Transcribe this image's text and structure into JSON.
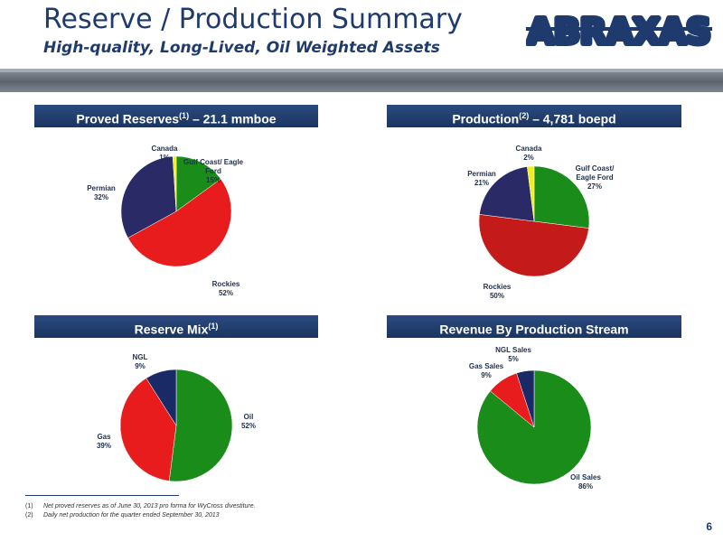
{
  "header": {
    "title": "Reserve / Production Summary",
    "subtitle": "High-quality, Long-Lived, Oil Weighted Assets",
    "logo_text": "ABRAXAS"
  },
  "sections": {
    "reserves": {
      "label": "Proved Reserves",
      "sup": "(1)",
      "suffix": " – 21.1 mmboe"
    },
    "production": {
      "label": "Production",
      "sup": "(2)",
      "suffix": " –  4,781 boepd"
    },
    "mix": {
      "label": "Reserve Mix",
      "sup": "(1)",
      "suffix": ""
    },
    "revenue": {
      "label": "Revenue By Production Stream",
      "sup": "",
      "suffix": ""
    }
  },
  "chart_data": [
    {
      "type": "pie",
      "id": "reserves",
      "slices": [
        {
          "label": "Gulf Coast/ Eagle Ford",
          "pct_label": "15%",
          "value": 15,
          "color": "#1a8c1a"
        },
        {
          "label": "Rockies",
          "pct_label": "52%",
          "value": 52,
          "color": "#e81c1c"
        },
        {
          "label": "Permian",
          "pct_label": "32%",
          "value": 32,
          "color": "#2a2a66"
        },
        {
          "label": "Canada",
          "pct_label": "1%",
          "value": 1,
          "color": "#f0f020"
        }
      ]
    },
    {
      "type": "pie",
      "id": "production",
      "slices": [
        {
          "label": "Gulf Coast/ Eagle Ford",
          "pct_label": "27%",
          "value": 27,
          "color": "#1a8c1a"
        },
        {
          "label": "Rockies",
          "pct_label": "50%",
          "value": 50,
          "color": "#c41a1a"
        },
        {
          "label": "Permian",
          "pct_label": "21%",
          "value": 21,
          "color": "#2a2a66"
        },
        {
          "label": "Canada",
          "pct_label": "2%",
          "value": 2,
          "color": "#f0f020"
        }
      ]
    },
    {
      "type": "pie",
      "id": "mix",
      "slices": [
        {
          "label": "Oil",
          "pct_label": "52%",
          "value": 52,
          "color": "#1a8c1a"
        },
        {
          "label": "Gas",
          "pct_label": "39%",
          "value": 39,
          "color": "#e81c1c"
        },
        {
          "label": "NGL",
          "pct_label": "9%",
          "value": 9,
          "color": "#1a2a66"
        }
      ]
    },
    {
      "type": "pie",
      "id": "revenue",
      "slices": [
        {
          "label": "Oil Sales",
          "pct_label": "86%",
          "value": 86,
          "color": "#1a8c1a"
        },
        {
          "label": "Gas Sales",
          "pct_label": "9%",
          "value": 9,
          "color": "#e81c1c"
        },
        {
          "label": "NGL Sales",
          "pct_label": "5%",
          "value": 5,
          "color": "#1a2a66"
        }
      ]
    }
  ],
  "footnotes": [
    {
      "num": "(1)",
      "text": "Net proved reserves as of June 30, 2013 pro forma for WyCross divestiture."
    },
    {
      "num": "(2)",
      "text": "Daily net production for the quarter ended September 30, 2013"
    }
  ],
  "page_number": "6",
  "colors": {
    "brand_navy": "#1f3b6e",
    "header_bar": "#1f3b6e"
  }
}
